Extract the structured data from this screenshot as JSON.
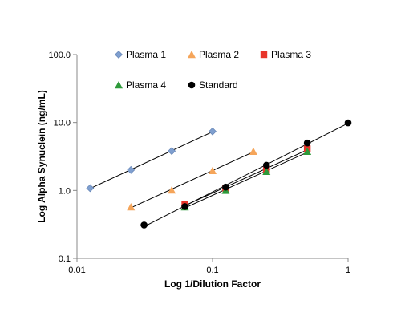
{
  "chart_data": {
    "type": "scatter",
    "xlabel": "Log 1/Dilution Factor",
    "ylabel": "Log Alpha Synuclein (ng/mL)",
    "x_scale": "log",
    "y_scale": "log",
    "xlim": [
      0.01,
      1
    ],
    "ylim": [
      0.1,
      100
    ],
    "x_ticks": [
      "0.01",
      "0.1",
      "1"
    ],
    "y_ticks": [
      "0.1",
      "1.0",
      "10.0",
      "100.0"
    ],
    "grid": false,
    "legend_position": "top",
    "trendlines": true,
    "series": [
      {
        "name": "Plasma 1",
        "marker": "diamond",
        "color": "#7f9fcf",
        "x": [
          0.0125,
          0.025,
          0.05,
          0.1
        ],
        "y": [
          1.08,
          2.0,
          3.8,
          7.4
        ]
      },
      {
        "name": "Plasma 2",
        "marker": "triangle",
        "color": "#f5a55a",
        "x": [
          0.025,
          0.05,
          0.1,
          0.2
        ],
        "y": [
          0.57,
          1.01,
          1.95,
          3.75
        ]
      },
      {
        "name": "Plasma 3",
        "marker": "square",
        "color": "#e8352a",
        "x": [
          0.0625,
          0.125,
          0.25,
          0.5
        ],
        "y": [
          0.62,
          1.08,
          2.05,
          4.1
        ]
      },
      {
        "name": "Plasma 4",
        "marker": "triangle",
        "color": "#2e9a3a",
        "x": [
          0.0625,
          0.125,
          0.25,
          0.5
        ],
        "y": [
          0.57,
          1.0,
          1.9,
          3.75
        ]
      },
      {
        "name": "Standard",
        "marker": "circle",
        "color": "#000000",
        "x": [
          0.03125,
          0.0625,
          0.125,
          0.25,
          0.5,
          1.0
        ],
        "y": [
          0.31,
          0.58,
          1.12,
          2.35,
          5.0,
          9.9
        ]
      }
    ]
  }
}
